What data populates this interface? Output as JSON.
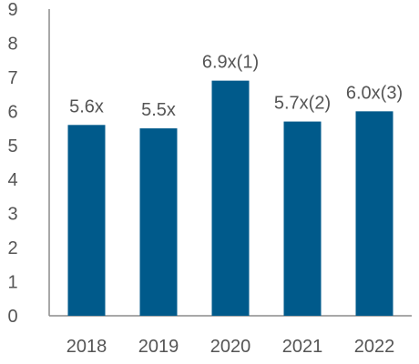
{
  "chart_data": {
    "type": "bar",
    "categories": [
      "2018",
      "2019",
      "2020",
      "2021",
      "2022"
    ],
    "values": [
      5.6,
      5.5,
      6.9,
      5.7,
      6.0
    ],
    "data_labels": [
      "5.6x",
      "5.5x",
      "6.9x(1)",
      "5.7x(2)",
      "6.0x(3)"
    ],
    "yticks": [
      "0",
      "1",
      "2",
      "3",
      "4",
      "5",
      "6",
      "7",
      "8",
      "9"
    ],
    "ylim": [
      0,
      9
    ],
    "title": "",
    "xlabel": "",
    "ylabel": "",
    "grid": false,
    "colors": {
      "bar": "#005a8b",
      "axis": "#8c8c8c",
      "text": "#555555"
    }
  }
}
